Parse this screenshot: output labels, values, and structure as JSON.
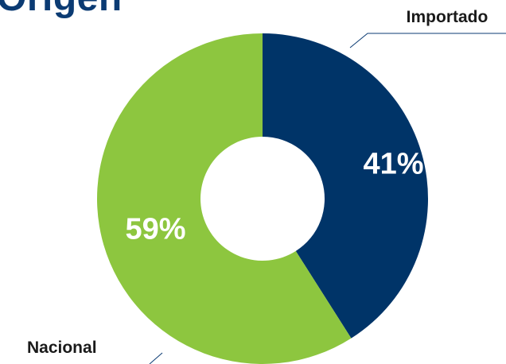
{
  "title": "Origen",
  "colors": {
    "importado": "#003468",
    "nacional": "#8dc63f",
    "title": "#0b3b73",
    "label_text": "#ffffff",
    "leader_line": "#0b3b73",
    "category_text": "#1a1a1a"
  },
  "chart_data": {
    "type": "pie",
    "style": "donut",
    "title": "Origen",
    "slices": [
      {
        "label": "Importado",
        "value": 41,
        "value_label": "41%"
      },
      {
        "label": "Nacional",
        "value": 59,
        "value_label": "59%"
      }
    ],
    "start_angle": "12 o'clock",
    "direction": "clockwise",
    "legend": "none (callout labels with leader lines)"
  }
}
